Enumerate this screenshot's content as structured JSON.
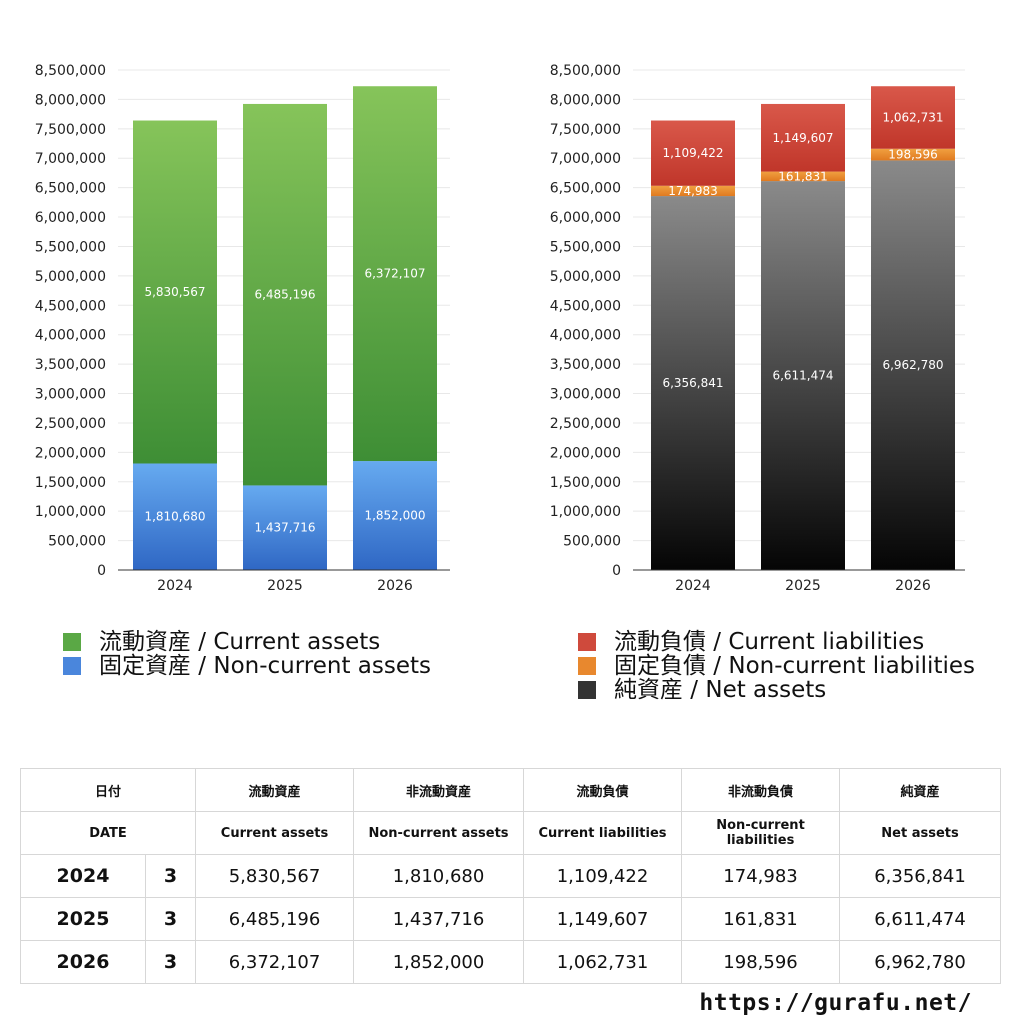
{
  "chart_data": [
    {
      "type": "bar",
      "stacked": true,
      "categories": [
        "2024",
        "2025",
        "2026"
      ],
      "ylim": [
        0,
        8500000
      ],
      "yticks": [
        0,
        500000,
        1000000,
        1500000,
        2000000,
        2500000,
        3000000,
        3500000,
        4000000,
        4500000,
        5000000,
        5500000,
        6000000,
        6500000,
        7000000,
        7500000,
        8000000,
        8500000
      ],
      "grid": true,
      "legend_position": "bottom",
      "series": [
        {
          "name": "固定資産 / Non-current assets",
          "values": [
            1810680,
            1437716,
            1852000
          ],
          "color_top": "#66aaf0",
          "color_bottom": "#2f67c4"
        },
        {
          "name": "流動資産 / Current assets",
          "values": [
            5830567,
            6485196,
            6372107
          ],
          "color_top": "#86c45a",
          "color_bottom": "#3e8e35"
        }
      ]
    },
    {
      "type": "bar",
      "stacked": true,
      "categories": [
        "2024",
        "2025",
        "2026"
      ],
      "ylim": [
        0,
        8500000
      ],
      "yticks": [
        0,
        500000,
        1000000,
        1500000,
        2000000,
        2500000,
        3000000,
        3500000,
        4000000,
        4500000,
        5000000,
        5500000,
        6000000,
        6500000,
        7000000,
        7500000,
        8000000,
        8500000
      ],
      "grid": true,
      "legend_position": "bottom",
      "series": [
        {
          "name": "純資産 / Net assets",
          "values": [
            6356841,
            6611474,
            6962780
          ],
          "color_top": "#8a8a8a",
          "color_bottom": "#050505"
        },
        {
          "name": "固定負債 / Non-current liabilities",
          "values": [
            174983,
            161831,
            198596
          ],
          "color_top": "#f0a040",
          "color_bottom": "#e07a20"
        },
        {
          "name": "流動負債 / Current liabilities",
          "values": [
            1109422,
            1149607,
            1062731
          ],
          "color_top": "#d9584a",
          "color_bottom": "#c0362a"
        }
      ]
    }
  ],
  "legend_left": [
    {
      "label": "流動資産 / Current assets",
      "color": "#5aa845"
    },
    {
      "label": "固定資産 / Non-current assets",
      "color": "#4a86dc"
    }
  ],
  "legend_right": [
    {
      "label": "流動負債 / Current liabilities",
      "color": "#cf4a3c"
    },
    {
      "label": "固定負債 / Non-current liabilities",
      "color": "#e8882e"
    },
    {
      "label": "純資産 / Net assets",
      "color": "#333333"
    }
  ],
  "table": {
    "header_jp": [
      "日付",
      "",
      "流動資産",
      "非流動資産",
      "流動負債",
      "非流動負債",
      "純資産"
    ],
    "header_en": [
      "DATE",
      "",
      "Current assets",
      "Non-current assets",
      "Current liabilities",
      "Non-current liabilities",
      "Net assets"
    ],
    "rows": [
      [
        "2024",
        "3",
        "5,830,567",
        "1,810,680",
        "1,109,422",
        "174,983",
        "6,356,841"
      ],
      [
        "2025",
        "3",
        "6,485,196",
        "1,437,716",
        "1,149,607",
        "161,831",
        "6,611,474"
      ],
      [
        "2026",
        "3",
        "6,372,107",
        "1,852,000",
        "1,062,731",
        "198,596",
        "6,962,780"
      ]
    ]
  },
  "footer": {
    "url": "https://gurafu.net/"
  }
}
